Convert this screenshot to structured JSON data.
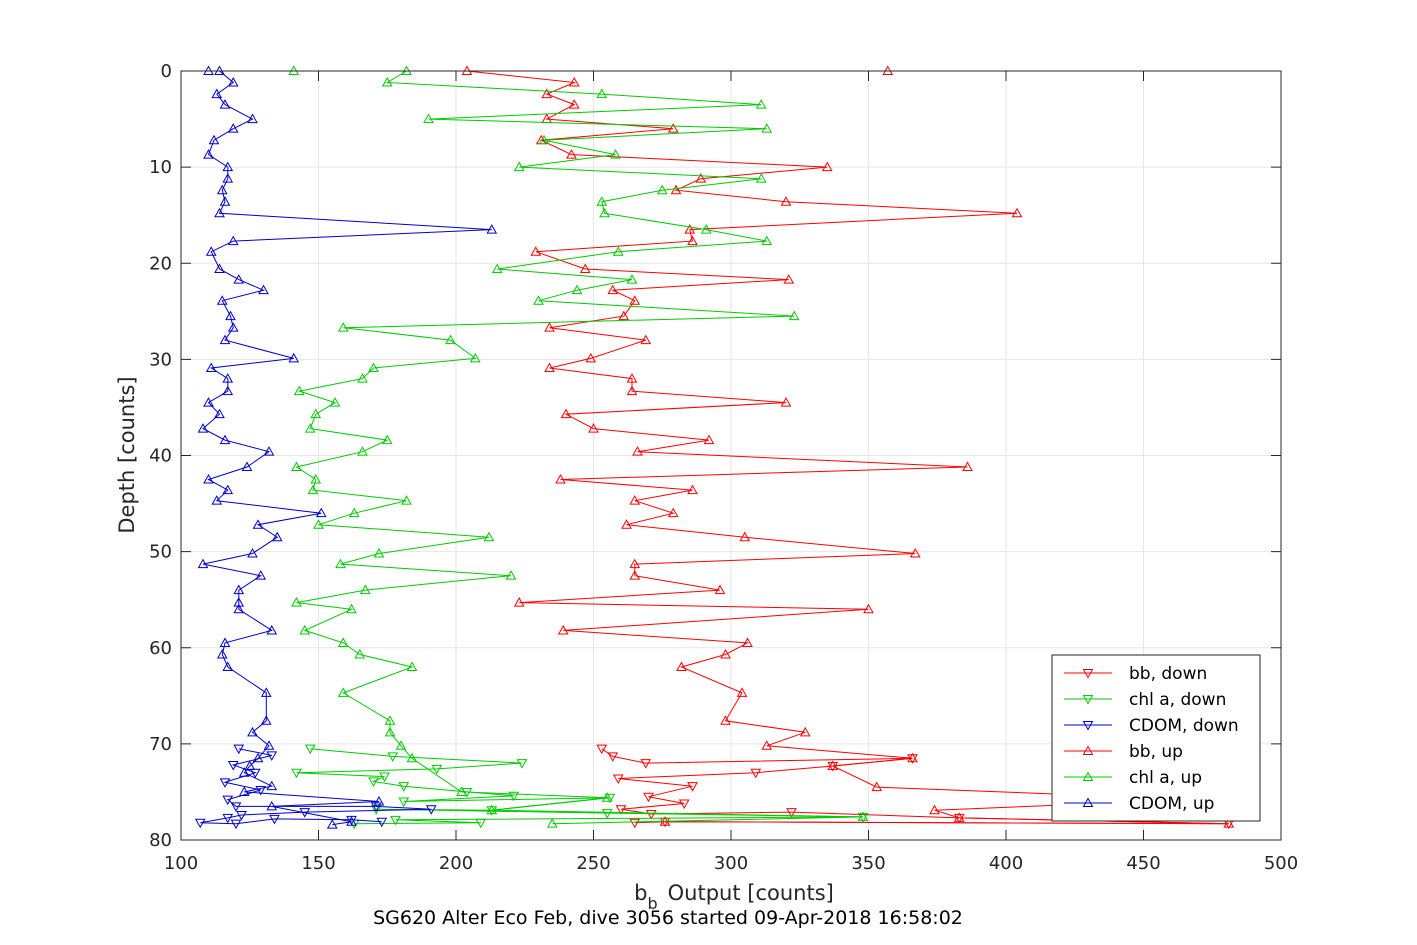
{
  "chart_data": {
    "type": "line",
    "xlabel": "Output [counts]",
    "xlabel_base": "b",
    "xlabel_subscript": "b",
    "ylabel": "Depth [counts]",
    "subtitle": "SG620 Alter Eco Feb, dive 3056 started 09-Apr-2018 16:58:02",
    "xlim": [
      100,
      500
    ],
    "ylim": [
      0,
      80
    ],
    "y_reversed": true,
    "grid": true,
    "legend_position": "bottom-right",
    "x_ticks": [
      "100",
      "150",
      "200",
      "250",
      "300",
      "350",
      "400",
      "450",
      "500"
    ],
    "y_ticks": [
      "0",
      "10",
      "20",
      "30",
      "40",
      "50",
      "60",
      "70",
      "80"
    ],
    "series": [
      {
        "name": "bb, down",
        "color": "#ff0000",
        "marker": "triangle-down",
        "points": [
          [
            253,
            70.5
          ],
          [
            257,
            71.3
          ],
          [
            269,
            72
          ],
          [
            366,
            71.5
          ],
          [
            337,
            72.3
          ],
          [
            309,
            73
          ],
          [
            259,
            73.6
          ],
          [
            286,
            74.4
          ],
          [
            270,
            75.5
          ],
          [
            283,
            76.2
          ],
          [
            260,
            76.8
          ],
          [
            271,
            77.3
          ],
          [
            322,
            77.1
          ],
          [
            383,
            77.7
          ],
          [
            481,
            78.3
          ],
          [
            276,
            78.1
          ],
          [
            265,
            78.2
          ]
        ]
      },
      {
        "name": "chl a, down",
        "color": "#00cc00",
        "marker": "triangle-down",
        "points": [
          [
            147,
            70.5
          ],
          [
            177,
            71.3
          ],
          [
            224,
            72
          ],
          [
            193,
            72.6
          ],
          [
            142,
            73
          ],
          [
            174,
            73.4
          ],
          [
            170,
            73.9
          ],
          [
            181,
            74.4
          ],
          [
            204,
            75
          ],
          [
            221,
            75.4
          ],
          [
            181,
            76
          ],
          [
            256,
            75.6
          ],
          [
            213,
            76.9
          ],
          [
            171,
            76.8
          ],
          [
            255,
            77.2
          ],
          [
            348,
            77.6
          ],
          [
            178,
            77.9
          ],
          [
            209,
            78.2
          ],
          [
            163,
            78.3
          ]
        ]
      },
      {
        "name": "CDOM, down",
        "color": "#0000cc",
        "marker": "triangle-down",
        "points": [
          [
            121,
            70.5
          ],
          [
            133,
            71.2
          ],
          [
            119,
            72.2
          ],
          [
            127,
            73
          ],
          [
            116,
            74
          ],
          [
            129,
            74.8
          ],
          [
            117,
            75.8
          ],
          [
            120,
            76.5
          ],
          [
            171,
            76.5
          ],
          [
            191,
            76.8
          ],
          [
            145,
            77.1
          ],
          [
            122,
            77.4
          ],
          [
            117,
            77.7
          ],
          [
            107,
            78.2
          ],
          [
            120,
            78.3
          ],
          [
            134,
            77.8
          ],
          [
            162,
            77.9
          ],
          [
            173,
            78.1
          ]
        ]
      },
      {
        "name": "bb, up",
        "color": "#ff0000",
        "marker": "triangle-up",
        "points": [
          [
            357,
            0
          ],
          [
            204,
            0
          ],
          [
            243,
            1.2
          ],
          [
            233,
            2.4
          ],
          [
            243,
            3.5
          ],
          [
            233,
            5
          ],
          [
            279,
            6
          ],
          [
            231,
            7.2
          ],
          [
            242,
            8.7
          ],
          [
            335,
            10
          ],
          [
            289,
            11.2
          ],
          [
            280,
            12.4
          ],
          [
            320,
            13.6
          ],
          [
            404,
            14.8
          ],
          [
            285,
            16.5
          ],
          [
            286,
            17.7
          ],
          [
            229,
            18.8
          ],
          [
            247,
            20.6
          ],
          [
            321,
            21.7
          ],
          [
            257,
            22.8
          ],
          [
            265,
            23.9
          ],
          [
            261,
            25.5
          ],
          [
            234,
            26.7
          ],
          [
            269,
            28
          ],
          [
            249,
            29.9
          ],
          [
            234,
            30.9
          ],
          [
            264,
            32
          ],
          [
            264,
            33.3
          ],
          [
            320,
            34.5
          ],
          [
            240,
            35.7
          ],
          [
            250,
            37.2
          ],
          [
            292,
            38.4
          ],
          [
            266,
            39.6
          ],
          [
            386,
            41.2
          ],
          [
            238,
            42.5
          ],
          [
            286,
            43.6
          ],
          [
            265,
            44.7
          ],
          [
            279,
            46
          ],
          [
            262,
            47.2
          ],
          [
            305,
            48.5
          ],
          [
            367,
            50.2
          ],
          [
            265,
            51.3
          ],
          [
            265,
            52.5
          ],
          [
            296,
            54
          ],
          [
            223,
            55.3
          ],
          [
            350,
            56
          ],
          [
            239,
            58.2
          ],
          [
            306,
            59.5
          ],
          [
            298,
            60.7
          ],
          [
            282,
            62
          ],
          [
            304,
            64.7
          ],
          [
            298,
            67.6
          ],
          [
            327,
            68.8
          ],
          [
            313,
            70.2
          ],
          [
            366,
            71.5
          ],
          [
            337,
            72.3
          ],
          [
            353,
            74.5
          ],
          [
            470,
            75.8
          ],
          [
            374,
            76.9
          ],
          [
            383,
            77.7
          ],
          [
            481,
            78.3
          ],
          [
            276,
            78.1
          ]
        ]
      },
      {
        "name": "chl a, up",
        "color": "#00cc00",
        "marker": "triangle-up",
        "points": [
          [
            141,
            0
          ],
          [
            182,
            0
          ],
          [
            175,
            1.2
          ],
          [
            253,
            2.4
          ],
          [
            311,
            3.5
          ],
          [
            190,
            5
          ],
          [
            313,
            6
          ],
          [
            232,
            7.2
          ],
          [
            258,
            8.7
          ],
          [
            223,
            10
          ],
          [
            311,
            11.2
          ],
          [
            275,
            12.4
          ],
          [
            253,
            13.6
          ],
          [
            254,
            14.8
          ],
          [
            291,
            16.5
          ],
          [
            313,
            17.7
          ],
          [
            259,
            18.8
          ],
          [
            215,
            20.6
          ],
          [
            264,
            21.7
          ],
          [
            244,
            22.8
          ],
          [
            230,
            23.9
          ],
          [
            323,
            25.5
          ],
          [
            159,
            26.7
          ],
          [
            198,
            28
          ],
          [
            207,
            29.9
          ],
          [
            170,
            30.9
          ],
          [
            166,
            32
          ],
          [
            143,
            33.3
          ],
          [
            156,
            34.5
          ],
          [
            149,
            35.7
          ],
          [
            147,
            37.2
          ],
          [
            175,
            38.4
          ],
          [
            166,
            39.6
          ],
          [
            142,
            41.2
          ],
          [
            149,
            42.5
          ],
          [
            148,
            43.6
          ],
          [
            182,
            44.7
          ],
          [
            163,
            46
          ],
          [
            150,
            47.2
          ],
          [
            212,
            48.5
          ],
          [
            172,
            50.2
          ],
          [
            158,
            51.3
          ],
          [
            220,
            52.5
          ],
          [
            167,
            54
          ],
          [
            142,
            55.3
          ],
          [
            162,
            56
          ],
          [
            145,
            58.2
          ],
          [
            159,
            59.5
          ],
          [
            165,
            60.7
          ],
          [
            184,
            62
          ],
          [
            159,
            64.7
          ],
          [
            176,
            67.6
          ],
          [
            176,
            68.8
          ],
          [
            180,
            70.2
          ],
          [
            184,
            71.5
          ],
          [
            202,
            75
          ],
          [
            255,
            75.6
          ],
          [
            213,
            76.9
          ],
          [
            348,
            77.6
          ],
          [
            235,
            78.3
          ]
        ]
      },
      {
        "name": "CDOM, up",
        "color": "#0000cc",
        "marker": "triangle-up",
        "points": [
          [
            110,
            0
          ],
          [
            114,
            0
          ],
          [
            119,
            1.2
          ],
          [
            113,
            2.4
          ],
          [
            116,
            3.5
          ],
          [
            126,
            5
          ],
          [
            119,
            6
          ],
          [
            112,
            7.2
          ],
          [
            110,
            8.7
          ],
          [
            117,
            10
          ],
          [
            117,
            11.2
          ],
          [
            115,
            12.4
          ],
          [
            116,
            13.6
          ],
          [
            114,
            14.8
          ],
          [
            213,
            16.5
          ],
          [
            119,
            17.7
          ],
          [
            111,
            18.8
          ],
          [
            114,
            20.6
          ],
          [
            121,
            21.7
          ],
          [
            130,
            22.8
          ],
          [
            115,
            23.9
          ],
          [
            118,
            25.5
          ],
          [
            119,
            26.7
          ],
          [
            116,
            28
          ],
          [
            141,
            29.9
          ],
          [
            111,
            30.9
          ],
          [
            117,
            32
          ],
          [
            117,
            33.3
          ],
          [
            110,
            34.5
          ],
          [
            114,
            35.7
          ],
          [
            108,
            37.2
          ],
          [
            116,
            38.4
          ],
          [
            132,
            39.6
          ],
          [
            124,
            41.2
          ],
          [
            110,
            42.5
          ],
          [
            117,
            43.6
          ],
          [
            113,
            44.7
          ],
          [
            151,
            46
          ],
          [
            128,
            47.2
          ],
          [
            135,
            48.5
          ],
          [
            126,
            50.2
          ],
          [
            108,
            51.3
          ],
          [
            129,
            52.5
          ],
          [
            121,
            54
          ],
          [
            121,
            55.3
          ],
          [
            121,
            56
          ],
          [
            133,
            58.2
          ],
          [
            116,
            59.5
          ],
          [
            115,
            60.7
          ],
          [
            117,
            62
          ],
          [
            131,
            64.7
          ],
          [
            131,
            67.6
          ],
          [
            126,
            68.8
          ],
          [
            132,
            70.2
          ],
          [
            128,
            71.5
          ],
          [
            125,
            72.3
          ],
          [
            123,
            73
          ],
          [
            133,
            74.4
          ],
          [
            123,
            75
          ],
          [
            172,
            76
          ],
          [
            133,
            76.5
          ],
          [
            162,
            78.1
          ],
          [
            155,
            78.4
          ]
        ]
      }
    ]
  }
}
